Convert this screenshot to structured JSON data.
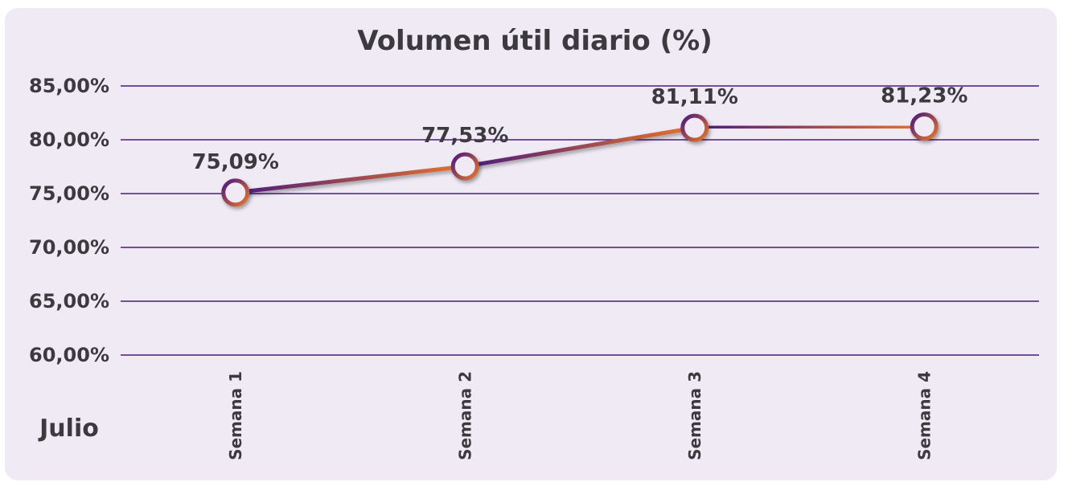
{
  "chart_data": {
    "type": "line",
    "title": "Volumen útil diario (%)",
    "group_label": "Julio",
    "categories": [
      "Semana 1",
      "Semana 2",
      "Semana 3",
      "Semana 4"
    ],
    "series": [
      {
        "values": [
          75.09,
          77.53,
          81.11,
          81.23
        ],
        "data_labels": [
          "75,09%",
          "77,53%",
          "81,11%",
          "81,23%"
        ]
      }
    ],
    "ylim": [
      60,
      85
    ],
    "y_ticks": [
      85,
      80,
      75,
      70,
      65,
      60
    ],
    "y_tick_labels": [
      "85,00%",
      "80,00%",
      "75,00%",
      "70,00%",
      "65,00%",
      "60,00%"
    ],
    "grid": true,
    "legend": "none",
    "colors": {
      "background": "#efeaf4",
      "grid": "#4b1a7d",
      "line_start": "#4b1a7d",
      "line_end": "#e8742a",
      "text": "#3d3a3f"
    }
  }
}
